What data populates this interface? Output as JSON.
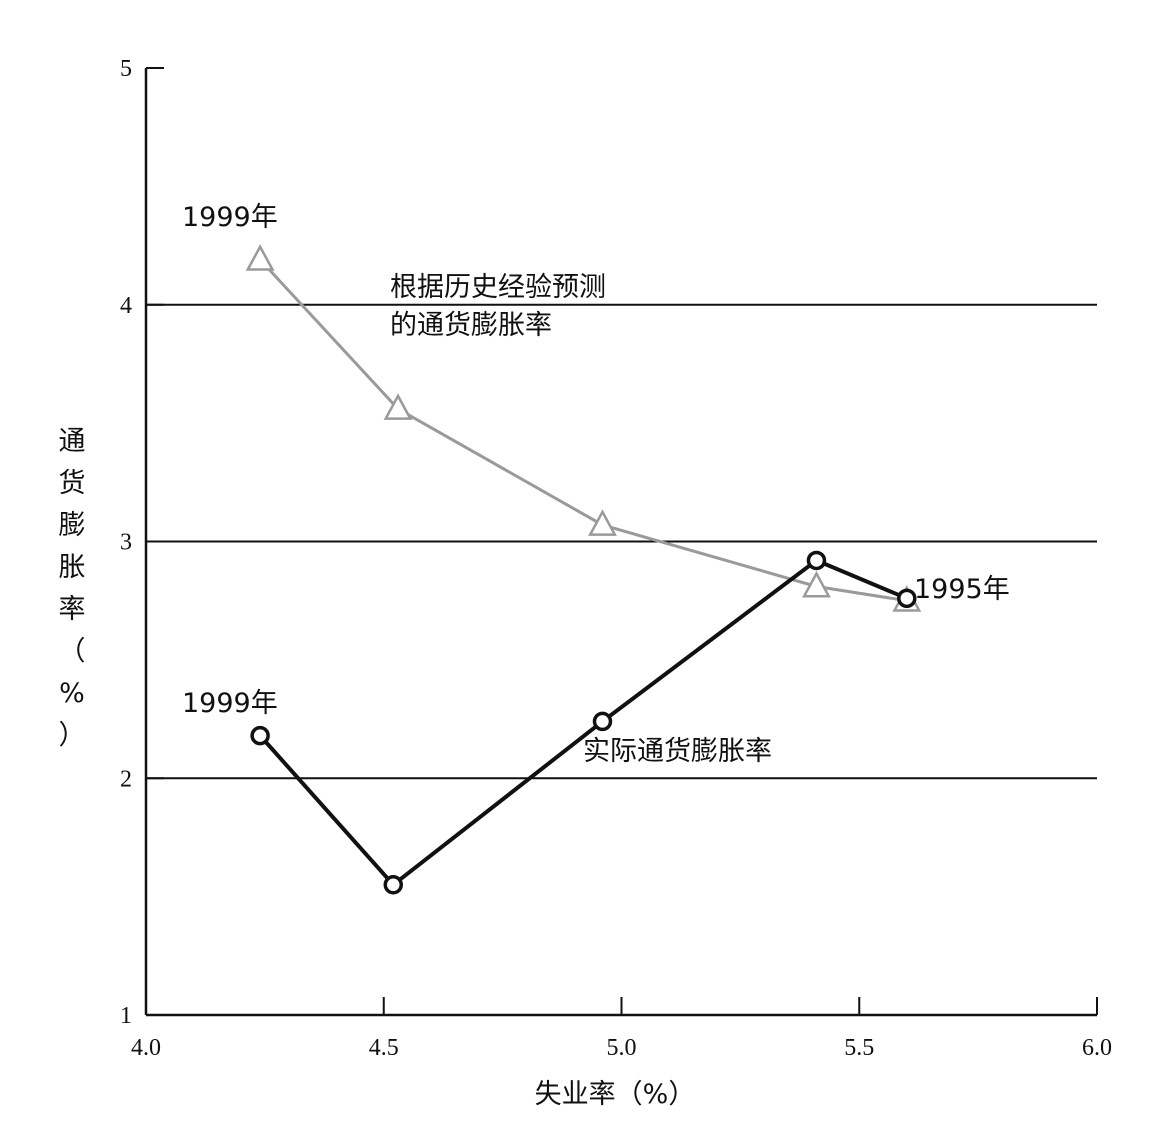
{
  "chart_data": {
    "type": "line",
    "title": "",
    "xlabel": "失业率（%）",
    "ylabel": "通货膨胀率（%）",
    "xlim": [
      4.0,
      6.0
    ],
    "ylim": [
      1,
      5
    ],
    "x_ticks": [
      "4.0",
      "4.5",
      "5.0",
      "5.5",
      "6.0"
    ],
    "y_ticks": [
      "1",
      "2",
      "3",
      "4",
      "5"
    ],
    "grid": "horizontal lines at 2, 3, 4",
    "series": [
      {
        "name": "根据历史经验预测的通货膨胀率",
        "marker": "triangle",
        "color": "#9a9a9a",
        "points": [
          {
            "x": 4.24,
            "y": 4.19
          },
          {
            "x": 4.53,
            "y": 3.56
          },
          {
            "x": 4.96,
            "y": 3.07
          },
          {
            "x": 5.41,
            "y": 2.81
          },
          {
            "x": 5.6,
            "y": 2.75
          }
        ]
      },
      {
        "name": "实际通货膨胀率",
        "marker": "circle",
        "color": "#111111",
        "points": [
          {
            "x": 4.24,
            "y": 2.18
          },
          {
            "x": 4.52,
            "y": 1.55
          },
          {
            "x": 4.96,
            "y": 2.24
          },
          {
            "x": 5.41,
            "y": 2.92
          },
          {
            "x": 5.6,
            "y": 2.76
          }
        ]
      }
    ],
    "annotations": {
      "predicted_start": "1999年",
      "predicted_label_line1": "根据历史经验预测",
      "predicted_label_line2": "的通货膨胀率",
      "actual_start": "1999年",
      "actual_label": "实际通货膨胀率",
      "end_label": "1995年"
    }
  }
}
